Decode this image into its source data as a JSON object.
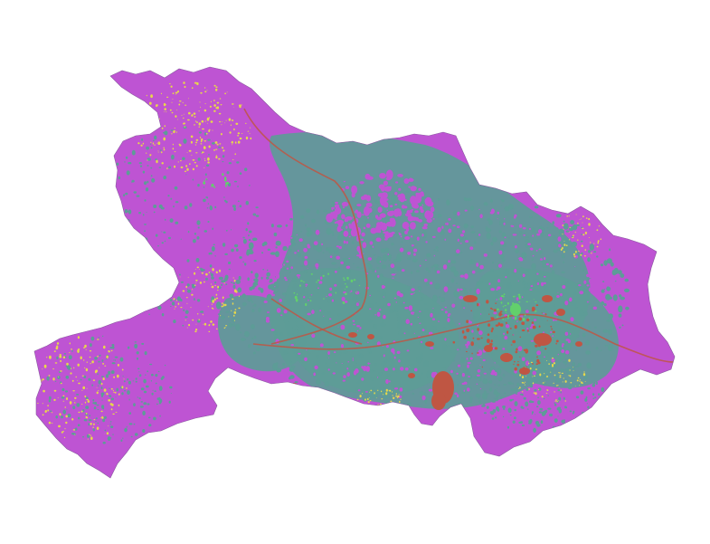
{
  "map": {
    "legend_colors": {
      "forest": "#be54d3",
      "cropland": "#5d9c97",
      "water": "#bf5643",
      "grassland": "#e8d84a",
      "urban": "#62d06b"
    }
  }
}
